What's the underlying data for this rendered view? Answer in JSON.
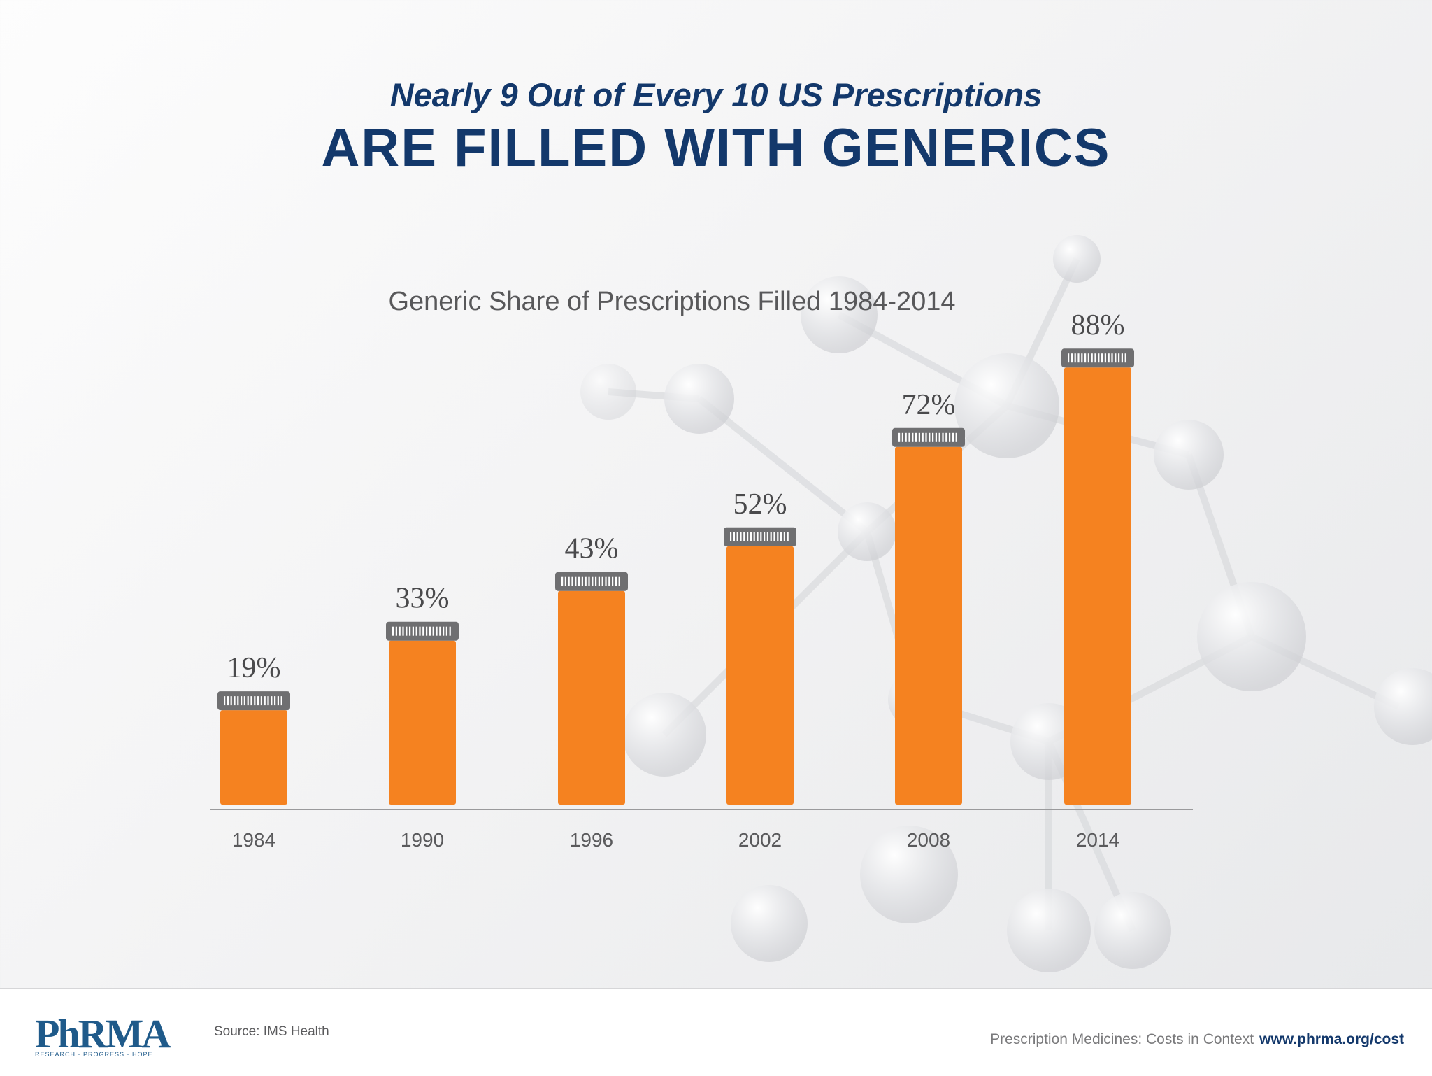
{
  "header": {
    "subtitle": "Nearly 9 Out of Every 10 US Prescriptions",
    "headline": "ARE FILLED WITH GENERICS"
  },
  "chart_data": {
    "type": "bar",
    "title": "Generic Share of Prescriptions Filled 1984-2014",
    "categories": [
      "1984",
      "1990",
      "1996",
      "2002",
      "2008",
      "2014"
    ],
    "values": [
      19,
      33,
      43,
      52,
      72,
      88
    ],
    "value_labels": [
      "19%",
      "33%",
      "43%",
      "52%",
      "72%",
      "88%"
    ],
    "xlabel": "",
    "ylabel": "",
    "ylim": [
      0,
      100
    ],
    "grid": false,
    "bar_color": "#f58220",
    "cap_color": "#6f6f71"
  },
  "footer": {
    "logo_text": "PhRMA",
    "logo_tagline": "RESEARCH · PROGRESS · HOPE",
    "source": "Source: IMS Health",
    "context": "Prescription Medicines: Costs in Context",
    "url": "www.phrma.org/cost"
  }
}
